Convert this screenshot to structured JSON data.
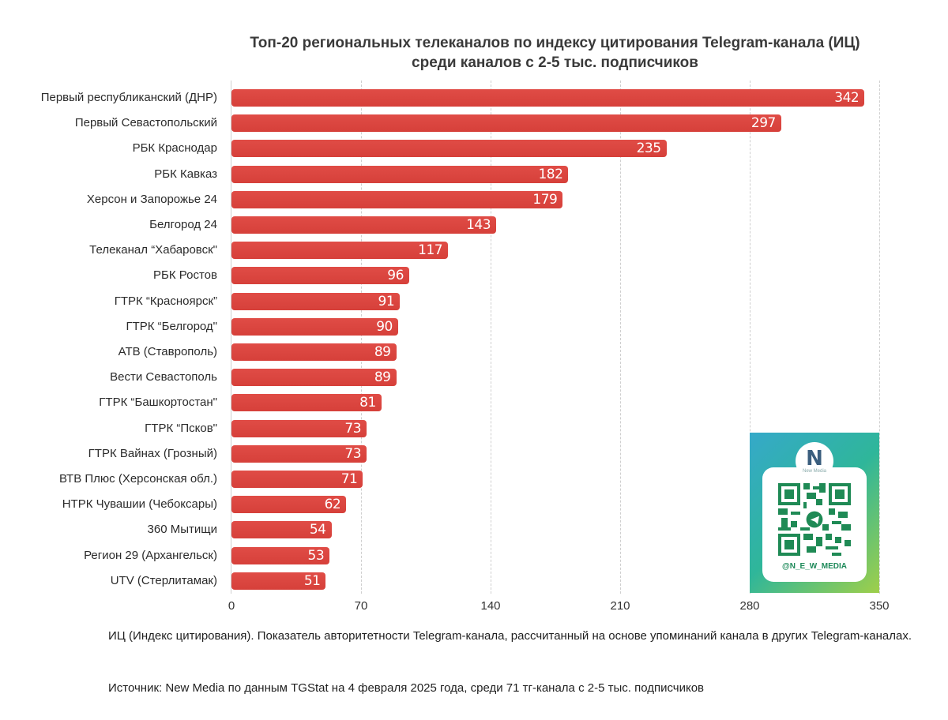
{
  "title": {
    "line1": "Топ-20 региональных телеканалов по индексу цитирования Telegram-канала (ИЦ)",
    "line2": "среди каналов с 2-5 тыс. подписчиков"
  },
  "chart_data": {
    "type": "bar",
    "orientation": "horizontal",
    "title": "Топ-20 региональных телеканалов по индексу цитирования Telegram-канала (ИЦ) среди каналов с 2-5 тыс. подписчиков",
    "xlabel": "",
    "ylabel": "",
    "xlim": [
      0,
      350
    ],
    "xticks": [
      "0",
      "70",
      "140",
      "210",
      "280",
      "350"
    ],
    "grid": true,
    "legend": null,
    "bar_color": "#D94440",
    "categories": [
      "Первый республиканский (ДНР)",
      "Первый Севастопольский",
      "РБК Краснодар",
      "РБК Кавказ",
      "Херсон и Запорожье 24",
      "Белгород 24",
      "Телеканал “Хабаровск\"",
      "РБК Ростов",
      "ГТРК “Красноярск”",
      "ГТРК “Белгород\"",
      "АТВ (Ставрополь)",
      "Вести Севастополь",
      "ГТРК “Башкортостан\"",
      "ГТРК “Псков\"",
      "ГТРК Вайнах (Грозный)",
      "ВТВ Плюс (Херсонская обл.)",
      "НТРК Чувашии (Чебоксары)",
      "360 Мытищи",
      "Регион 29 (Архангельск)",
      "UTV (Стерлитамак)"
    ],
    "values": [
      342,
      297,
      235,
      182,
      179,
      143,
      117,
      96,
      91,
      90,
      89,
      89,
      81,
      73,
      73,
      71,
      62,
      54,
      53,
      51
    ]
  },
  "axis": {
    "ticks": [
      "0",
      "70",
      "140",
      "210",
      "280",
      "350"
    ]
  },
  "qr": {
    "logo_letter": "N",
    "logo_sub": "New Media",
    "handle": "@N_E_W_MEDIA"
  },
  "notes": {
    "definition": "ИЦ (Индекс цитирования). Показатель авторитетности Telegram-канала, рассчитанный на основе упоминаний канала в других Telegram-каналах.",
    "source": "Источник: New Media по данным TGStat на 4 февраля 2025 года, среди 71 тг-канала с 2-5 тыс. подписчиков"
  }
}
